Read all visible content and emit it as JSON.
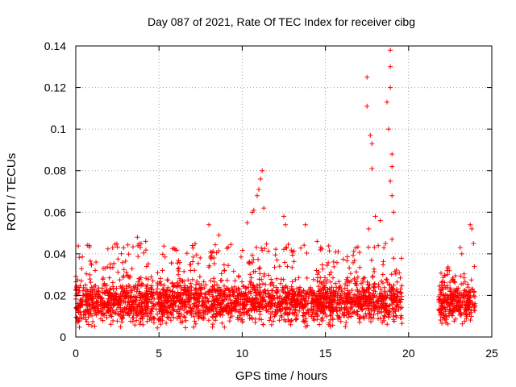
{
  "chart_data": {
    "type": "scatter",
    "title": "Day 087 of 2021, Rate Of TEC Index for receiver cibg",
    "xlabel": "GPS time / hours",
    "ylabel": "ROTI / TECUs",
    "xlim": [
      0,
      25
    ],
    "ylim": [
      0,
      0.14
    ],
    "xticks": [
      "0",
      "5",
      "10",
      "15",
      "20",
      "25"
    ],
    "yticks": [
      "0",
      "0.02",
      "0.04",
      "0.06",
      "0.08",
      "0.1",
      "0.12",
      "0.14"
    ],
    "grid": true,
    "marker": "+",
    "color": "#ff0000",
    "series": [
      {
        "name": "ROTI",
        "segments": [
          {
            "x_start": 0.0,
            "x_end": 19.6,
            "typical_low": 0.007,
            "typical_high": 0.027,
            "peak": 0.045
          },
          {
            "x_start": 21.8,
            "x_end": 24.0,
            "typical_low": 0.007,
            "typical_high": 0.026,
            "peak": 0.034
          }
        ],
        "outliers": [
          {
            "x": 0.8,
            "y": 0.044
          },
          {
            "x": 3.7,
            "y": 0.048
          },
          {
            "x": 4.2,
            "y": 0.046
          },
          {
            "x": 8.0,
            "y": 0.054
          },
          {
            "x": 8.6,
            "y": 0.049
          },
          {
            "x": 10.3,
            "y": 0.055
          },
          {
            "x": 10.6,
            "y": 0.06
          },
          {
            "x": 10.7,
            "y": 0.061
          },
          {
            "x": 10.9,
            "y": 0.068
          },
          {
            "x": 11.0,
            "y": 0.071
          },
          {
            "x": 11.1,
            "y": 0.076
          },
          {
            "x": 11.2,
            "y": 0.08
          },
          {
            "x": 11.3,
            "y": 0.062
          },
          {
            "x": 12.5,
            "y": 0.058
          },
          {
            "x": 12.6,
            "y": 0.054
          },
          {
            "x": 13.8,
            "y": 0.054
          },
          {
            "x": 14.5,
            "y": 0.046
          },
          {
            "x": 17.5,
            "y": 0.125
          },
          {
            "x": 17.5,
            "y": 0.111
          },
          {
            "x": 17.7,
            "y": 0.097
          },
          {
            "x": 17.8,
            "y": 0.093
          },
          {
            "x": 17.8,
            "y": 0.081
          },
          {
            "x": 17.6,
            "y": 0.052
          },
          {
            "x": 18.0,
            "y": 0.058
          },
          {
            "x": 18.3,
            "y": 0.056
          },
          {
            "x": 18.7,
            "y": 0.113
          },
          {
            "x": 18.8,
            "y": 0.1
          },
          {
            "x": 18.9,
            "y": 0.138
          },
          {
            "x": 18.9,
            "y": 0.13
          },
          {
            "x": 18.9,
            "y": 0.12
          },
          {
            "x": 19.0,
            "y": 0.088
          },
          {
            "x": 19.0,
            "y": 0.082
          },
          {
            "x": 18.9,
            "y": 0.075
          },
          {
            "x": 19.0,
            "y": 0.068
          },
          {
            "x": 19.1,
            "y": 0.06
          },
          {
            "x": 19.0,
            "y": 0.047
          },
          {
            "x": 23.1,
            "y": 0.043
          },
          {
            "x": 23.2,
            "y": 0.04
          },
          {
            "x": 23.7,
            "y": 0.054
          },
          {
            "x": 23.8,
            "y": 0.052
          },
          {
            "x": 23.9,
            "y": 0.045
          }
        ]
      }
    ]
  }
}
